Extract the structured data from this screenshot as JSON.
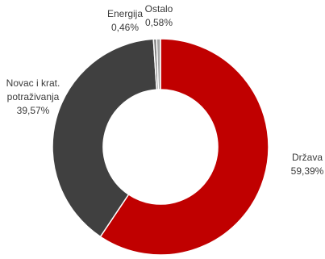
{
  "chart_data": {
    "type": "pie",
    "donut": true,
    "legend": "none",
    "categories": [
      "Država",
      "Novac i krat. potraživanja",
      "Energija",
      "Ostalo"
    ],
    "values": [
      59.39,
      39.57,
      0.46,
      0.58
    ],
    "value_labels": [
      "59,39%",
      "39,57%",
      "0,46%",
      "0,58%"
    ],
    "label_lines": [
      [
        "Država"
      ],
      [
        "Novac i krat.",
        "potraživanja"
      ],
      [
        "Energija"
      ],
      [
        "Ostalo"
      ]
    ],
    "colors": [
      "#c00000",
      "#404040",
      "#7f7f7f",
      "#a6a6a6"
    ],
    "start": "top, clockwise"
  }
}
